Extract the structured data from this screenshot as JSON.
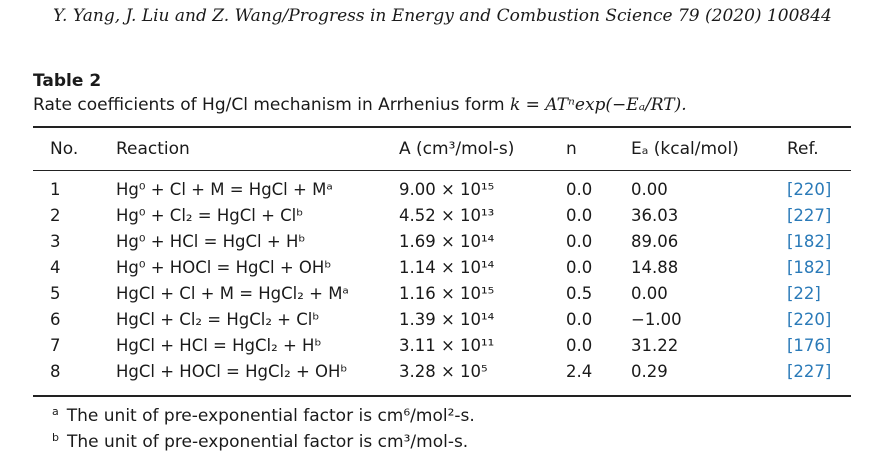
{
  "header": "Y. Yang, J. Liu and Z. Wang/Progress in Energy and Combustion Science 79 (2020) 100844",
  "table": {
    "label": "Table 2",
    "caption_text": "Rate coefficients of Hg/Cl mechanism in Arrhenius form ",
    "caption_formula": "k = ATⁿexp(−Eₐ/RT).",
    "columns": {
      "no": "No.",
      "reaction": "Reaction",
      "a": "A (cm³/mol-s)",
      "n": "n",
      "ea": "Eₐ (kcal/mol)",
      "ref": "Ref."
    },
    "rows": [
      {
        "no": "1",
        "reaction": "Hg⁰ + Cl + M = HgCl + Mᵃ",
        "a": "9.00 × 10¹⁵",
        "n": "0.0",
        "ea": "0.00",
        "ref": "[220]"
      },
      {
        "no": "2",
        "reaction": "Hg⁰ + Cl₂ = HgCl + Clᵇ",
        "a": "4.52 × 10¹³",
        "n": "0.0",
        "ea": "36.03",
        "ref": "[227]"
      },
      {
        "no": "3",
        "reaction": "Hg⁰ + HCl = HgCl + Hᵇ",
        "a": "1.69 × 10¹⁴",
        "n": "0.0",
        "ea": "89.06",
        "ref": "[182]"
      },
      {
        "no": "4",
        "reaction": "Hg⁰ + HOCl = HgCl + OHᵇ",
        "a": "1.14 × 10¹⁴",
        "n": "0.0",
        "ea": "14.88",
        "ref": "[182]"
      },
      {
        "no": "5",
        "reaction": "HgCl + Cl + M = HgCl₂ + Mᵃ",
        "a": "1.16 × 10¹⁵",
        "n": "0.5",
        "ea": "0.00",
        "ref": "[22]"
      },
      {
        "no": "6",
        "reaction": "HgCl + Cl₂ = HgCl₂ + Clᵇ",
        "a": "1.39 × 10¹⁴",
        "n": "0.0",
        "ea": "−1.00",
        "ref": "[220]"
      },
      {
        "no": "7",
        "reaction": "HgCl + HCl = HgCl₂ + Hᵇ",
        "a": "3.11 × 10¹¹",
        "n": "0.0",
        "ea": "31.22",
        "ref": "[176]"
      },
      {
        "no": "8",
        "reaction": "HgCl + HOCl = HgCl₂ + OHᵇ",
        "a": "3.28 × 10⁵",
        "n": "2.4",
        "ea": "0.29",
        "ref": "[227]"
      }
    ],
    "footnotes": [
      {
        "mark": "a",
        "text": "The unit of pre-exponential factor is cm⁶/mol²-s."
      },
      {
        "mark": "b",
        "text": "The unit of pre-exponential factor is cm³/mol-s."
      }
    ]
  }
}
